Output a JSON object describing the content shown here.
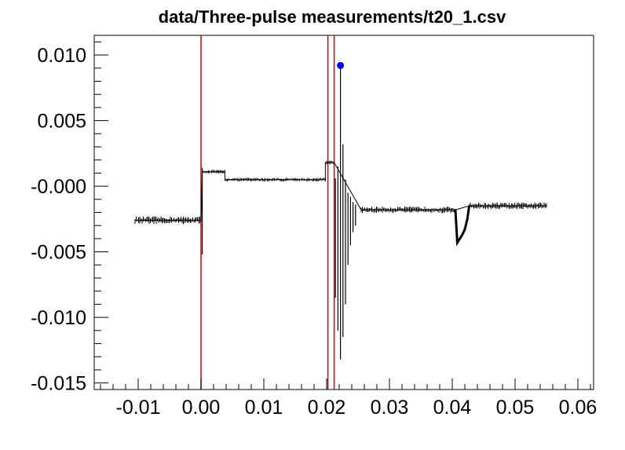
{
  "chart_data": {
    "type": "line",
    "title": "data/Three-pulse measurements/t20_1.csv",
    "xlabel": "",
    "ylabel": "",
    "xlim": [
      -0.017,
      0.0625
    ],
    "ylim": [
      -0.0155,
      0.0115
    ],
    "x_ticks": [
      {
        "value": -0.01,
        "label": "-0.01"
      },
      {
        "value": 0.0,
        "label": "0.00"
      },
      {
        "value": 0.01,
        "label": "0.01"
      },
      {
        "value": 0.02,
        "label": "0.02"
      },
      {
        "value": 0.03,
        "label": "0.03"
      },
      {
        "value": 0.04,
        "label": "0.04"
      },
      {
        "value": 0.05,
        "label": "0.05"
      },
      {
        "value": 0.06,
        "label": "0.06"
      }
    ],
    "y_ticks": [
      {
        "value": 0.01,
        "label": "0.010"
      },
      {
        "value": 0.005,
        "label": "0.005"
      },
      {
        "value": 0.0,
        "label": "-0.000"
      },
      {
        "value": -0.005,
        "label": "-0.005"
      },
      {
        "value": -0.01,
        "label": "-0.010"
      },
      {
        "value": -0.015,
        "label": "-0.015"
      }
    ],
    "grid": false,
    "line_color": "#000000",
    "vline_color": "#cc0000",
    "marker_color": "#0000ff",
    "vlines": [
      0.0,
      0.0202,
      0.0212
    ],
    "marker": {
      "x": 0.0222,
      "y": 0.0092
    },
    "segments": [
      {
        "x0": -0.0105,
        "x1": 0.0,
        "level": -0.0026,
        "noise": 0.0006
      },
      {
        "x0": 0.0002,
        "x1": 0.0038,
        "level": 0.0011,
        "noise": 0.0003
      },
      {
        "x0": 0.0038,
        "x1": 0.0198,
        "level": 0.0005,
        "noise": 0.0003
      },
      {
        "x0": 0.0198,
        "x1": 0.0212,
        "level": 0.0018,
        "noise": 0.0003
      },
      {
        "x0": 0.0255,
        "x1": 0.0405,
        "level": -0.0018,
        "noise": 0.0005
      },
      {
        "x0": 0.0427,
        "x1": 0.055,
        "level": -0.0015,
        "noise": 0.0005
      }
    ],
    "spikes": [
      {
        "x": 0.0002,
        "min": -0.0052,
        "max": 0.0014
      },
      {
        "x": 0.0214,
        "min": -0.0085,
        "max": 0.0006
      },
      {
        "x": 0.0218,
        "min": -0.011,
        "max": 0.0015
      },
      {
        "x": 0.0222,
        "min": -0.0132,
        "max": 0.0092
      },
      {
        "x": 0.0226,
        "min": -0.0115,
        "max": 0.0032
      },
      {
        "x": 0.023,
        "min": -0.009,
        "max": 0.0005
      },
      {
        "x": 0.0234,
        "min": -0.006,
        "max": -0.0005
      },
      {
        "x": 0.0238,
        "min": -0.0045,
        "max": -0.0008
      },
      {
        "x": 0.0242,
        "min": -0.0035,
        "max": -0.0012
      },
      {
        "x": 0.0246,
        "min": -0.003,
        "max": -0.0014
      }
    ],
    "dip": [
      {
        "x": 0.0405,
        "y": -0.0018
      },
      {
        "x": 0.0408,
        "y": -0.0043
      },
      {
        "x": 0.0412,
        "y": -0.004
      },
      {
        "x": 0.0416,
        "y": -0.0037
      },
      {
        "x": 0.042,
        "y": -0.0033
      },
      {
        "x": 0.0424,
        "y": -0.0025
      },
      {
        "x": 0.0427,
        "y": -0.0015
      }
    ]
  }
}
